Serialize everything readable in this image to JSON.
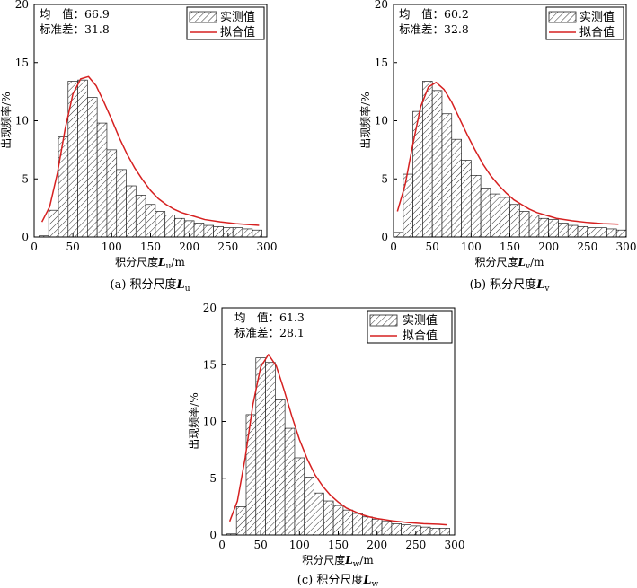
{
  "figure": {
    "charts": [
      {
        "stats": {
          "mean_label": "均　值：",
          "mean_value": "66.9",
          "std_label": "标准差：",
          "std_value": "31.8"
        },
        "xlabel_main": "积分尺度",
        "xlabel_var": "L",
        "xlabel_sub": "u",
        "xlabel_unit": "/m",
        "caption_prefix": "(a) 积分尺度",
        "caption_var": "L",
        "caption_sub": "u"
      },
      {
        "stats": {
          "mean_label": "均　值：",
          "mean_value": "60.2",
          "std_label": "标准差：",
          "std_value": "32.8"
        },
        "xlabel_main": "积分尺度",
        "xlabel_var": "L",
        "xlabel_sub": "v",
        "xlabel_unit": "/m",
        "caption_prefix": "(b) 积分尺度",
        "caption_var": "L",
        "caption_sub": "v"
      },
      {
        "stats": {
          "mean_label": "均　值：",
          "mean_value": "61.3",
          "std_label": "标准差：",
          "std_value": "28.1"
        },
        "xlabel_main": "积分尺度",
        "xlabel_var": "L",
        "xlabel_sub": "w",
        "xlabel_unit": "/m",
        "caption_prefix": "(c) 积分尺度",
        "caption_var": "L",
        "caption_sub": "w"
      }
    ]
  },
  "colors": {
    "fit_line": "#d62020",
    "bar_stroke": "#222222",
    "hatch": "#333333",
    "axis": "#000000"
  },
  "chart_data": [
    {
      "type": "bar",
      "xlabel": "积分尺度Lu/m",
      "ylabel": "出现频率/%",
      "xlim": [
        0,
        300
      ],
      "ylim": [
        0,
        20
      ],
      "xticks": [
        0,
        50,
        100,
        150,
        200,
        250,
        300
      ],
      "yticks": [
        0,
        5,
        10,
        15,
        20
      ],
      "bin_width": 12.5,
      "series": [
        {
          "name": "实测值",
          "kind": "bar",
          "x": [
            12.5,
            25,
            37.5,
            50,
            62.5,
            75,
            87.5,
            100,
            112.5,
            125,
            137.5,
            150,
            162.5,
            175,
            187.5,
            200,
            212.5,
            225,
            237.5,
            250,
            262.5,
            275,
            287.5
          ],
          "values": [
            0.1,
            2.3,
            8.6,
            13.4,
            13.5,
            12.0,
            9.8,
            7.5,
            5.8,
            4.4,
            3.6,
            2.8,
            2.2,
            1.9,
            1.6,
            1.4,
            1.2,
            1.0,
            0.9,
            0.8,
            0.8,
            0.7,
            0.6
          ]
        },
        {
          "name": "拟合值",
          "kind": "line",
          "x": [
            10,
            20,
            30,
            40,
            50,
            60,
            70,
            80,
            90,
            100,
            110,
            120,
            130,
            140,
            150,
            160,
            170,
            180,
            190,
            200,
            220,
            240,
            260,
            280,
            290
          ],
          "values": [
            1.3,
            2.6,
            5.5,
            9.3,
            12.3,
            13.6,
            13.8,
            13.0,
            11.6,
            10.1,
            8.5,
            7.1,
            5.9,
            4.9,
            4.0,
            3.3,
            2.8,
            2.4,
            2.1,
            1.9,
            1.5,
            1.3,
            1.15,
            1.05,
            1.0
          ]
        }
      ],
      "legend": "top-right"
    },
    {
      "type": "bar",
      "xlabel": "积分尺度Lv/m",
      "ylabel": "出现频率/%",
      "xlim": [
        0,
        300
      ],
      "ylim": [
        0,
        20
      ],
      "xticks": [
        0,
        50,
        100,
        150,
        200,
        250,
        300
      ],
      "yticks": [
        0,
        5,
        10,
        15,
        20
      ],
      "bin_width": 12.5,
      "series": [
        {
          "name": "实测值",
          "kind": "bar",
          "x": [
            6.25,
            18.75,
            31.25,
            43.75,
            56.25,
            68.75,
            81.25,
            93.75,
            106.25,
            118.75,
            131.25,
            143.75,
            156.25,
            168.75,
            181.25,
            193.75,
            206.25,
            218.75,
            231.25,
            243.75,
            256.25,
            268.75,
            281.25,
            293.75
          ],
          "values": [
            0.4,
            5.4,
            10.8,
            13.4,
            12.6,
            10.6,
            8.4,
            6.6,
            5.3,
            4.2,
            3.7,
            3.4,
            2.8,
            2.2,
            1.9,
            1.6,
            1.5,
            1.2,
            1.0,
            0.9,
            0.8,
            0.8,
            0.7,
            0.6
          ]
        },
        {
          "name": "拟合值",
          "kind": "line",
          "x": [
            5,
            15,
            25,
            35,
            45,
            55,
            65,
            75,
            85,
            95,
            105,
            115,
            125,
            135,
            145,
            155,
            165,
            175,
            185,
            195,
            210,
            230,
            250,
            270,
            290
          ],
          "values": [
            2.2,
            4.5,
            8.0,
            11.2,
            12.9,
            13.3,
            12.7,
            11.6,
            10.2,
            8.8,
            7.5,
            6.3,
            5.3,
            4.5,
            3.8,
            3.2,
            2.8,
            2.4,
            2.1,
            1.9,
            1.6,
            1.4,
            1.25,
            1.15,
            1.1
          ]
        }
      ],
      "legend": "top-right"
    },
    {
      "type": "bar",
      "xlabel": "积分尺度Lw/m",
      "ylabel": "出现频率/%",
      "xlim": [
        0,
        300
      ],
      "ylim": [
        0,
        20
      ],
      "xticks": [
        0,
        50,
        100,
        150,
        200,
        250,
        300
      ],
      "yticks": [
        0,
        5,
        10,
        15,
        20
      ],
      "bin_width": 12.5,
      "series": [
        {
          "name": "实测值",
          "kind": "bar",
          "x": [
            12.5,
            25,
            37.5,
            50,
            62.5,
            75,
            87.5,
            100,
            112.5,
            125,
            137.5,
            150,
            162.5,
            175,
            187.5,
            200,
            212.5,
            225,
            237.5,
            250,
            262.5,
            275,
            287.5
          ],
          "values": [
            0.1,
            2.5,
            10.6,
            15.6,
            15.2,
            11.9,
            9.4,
            6.8,
            5.1,
            3.7,
            3.0,
            2.6,
            2.2,
            1.9,
            1.6,
            1.4,
            1.2,
            1.0,
            0.9,
            0.8,
            0.7,
            0.6,
            0.6
          ]
        },
        {
          "name": "拟合值",
          "kind": "line",
          "x": [
            10,
            20,
            30,
            40,
            50,
            60,
            70,
            80,
            90,
            100,
            110,
            120,
            130,
            140,
            150,
            160,
            170,
            180,
            190,
            200,
            220,
            240,
            260,
            280,
            290
          ],
          "values": [
            1.2,
            3.0,
            6.8,
            11.5,
            14.8,
            15.9,
            14.9,
            12.8,
            10.5,
            8.4,
            6.7,
            5.3,
            4.3,
            3.5,
            2.9,
            2.4,
            2.1,
            1.8,
            1.6,
            1.45,
            1.25,
            1.1,
            1.0,
            0.95,
            0.9
          ]
        }
      ],
      "legend": "top-right"
    }
  ]
}
